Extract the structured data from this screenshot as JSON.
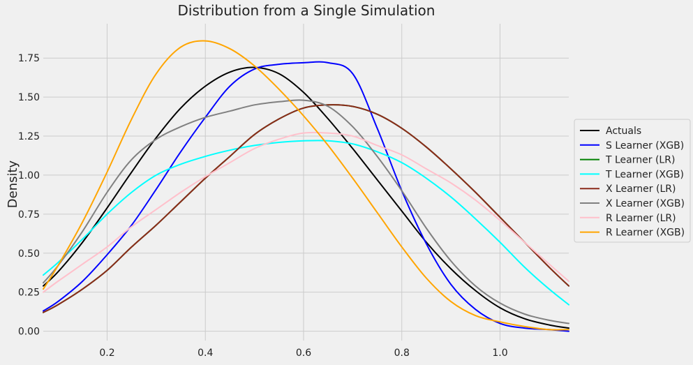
{
  "chart_data": {
    "type": "line",
    "title": "Distribution from a Single Simulation",
    "xlabel": "",
    "ylabel": "Density",
    "xlim": [
      0.07,
      1.14
    ],
    "ylim": [
      -0.06,
      1.97
    ],
    "xticks": [
      0.2,
      0.4,
      0.6,
      0.8,
      1.0
    ],
    "xtick_labels": [
      "0.2",
      "0.4",
      "0.6",
      "0.8",
      "1.0"
    ],
    "yticks": [
      0.0,
      0.25,
      0.5,
      0.75,
      1.0,
      1.25,
      1.5,
      1.75
    ],
    "ytick_labels": [
      "0.00",
      "0.25",
      "0.50",
      "0.75",
      "1.00",
      "1.25",
      "1.50",
      "1.75"
    ],
    "grid": true,
    "legend_placement": "center-right-outside",
    "series": [
      {
        "name": "Actuals",
        "color": "#000000",
        "x": [
          0.07,
          0.1,
          0.15,
          0.2,
          0.25,
          0.3,
          0.35,
          0.4,
          0.45,
          0.5,
          0.55,
          0.6,
          0.65,
          0.7,
          0.75,
          0.8,
          0.85,
          0.9,
          0.95,
          1.0,
          1.05,
          1.1,
          1.14
        ],
        "y": [
          0.29,
          0.38,
          0.57,
          0.79,
          1.02,
          1.24,
          1.43,
          1.57,
          1.66,
          1.69,
          1.65,
          1.53,
          1.36,
          1.17,
          0.97,
          0.77,
          0.57,
          0.4,
          0.26,
          0.15,
          0.08,
          0.04,
          0.02
        ]
      },
      {
        "name": "S Learner (XGB)",
        "color": "#0000ff",
        "x": [
          0.07,
          0.1,
          0.15,
          0.2,
          0.25,
          0.3,
          0.35,
          0.4,
          0.45,
          0.5,
          0.55,
          0.6,
          0.65,
          0.7,
          0.75,
          0.8,
          0.85,
          0.9,
          0.95,
          1.0,
          1.05,
          1.1,
          1.14
        ],
        "y": [
          0.13,
          0.19,
          0.32,
          0.49,
          0.68,
          0.91,
          1.15,
          1.37,
          1.57,
          1.68,
          1.71,
          1.72,
          1.72,
          1.65,
          1.3,
          0.9,
          0.56,
          0.3,
          0.14,
          0.05,
          0.02,
          0.01,
          0.0
        ]
      },
      {
        "name": "T Learner (LR)",
        "color": "#008000",
        "x": [
          0.07,
          0.1,
          0.15,
          0.2,
          0.25,
          0.3,
          0.35,
          0.4,
          0.45,
          0.5,
          0.55,
          0.6,
          0.65,
          0.7,
          0.75,
          0.8,
          0.85,
          0.9,
          0.95,
          1.0,
          1.05,
          1.1,
          1.14
        ],
        "y": [
          0.12,
          0.17,
          0.27,
          0.39,
          0.54,
          0.68,
          0.83,
          0.98,
          1.12,
          1.26,
          1.36,
          1.43,
          1.45,
          1.44,
          1.39,
          1.3,
          1.18,
          1.04,
          0.89,
          0.73,
          0.57,
          0.41,
          0.29
        ]
      },
      {
        "name": "T Learner (XGB)",
        "color": "#00ffff",
        "x": [
          0.07,
          0.1,
          0.15,
          0.2,
          0.25,
          0.3,
          0.35,
          0.4,
          0.45,
          0.5,
          0.55,
          0.6,
          0.65,
          0.7,
          0.75,
          0.8,
          0.85,
          0.9,
          0.95,
          1.0,
          1.05,
          1.1,
          1.14
        ],
        "y": [
          0.36,
          0.44,
          0.59,
          0.75,
          0.89,
          1.0,
          1.07,
          1.12,
          1.16,
          1.19,
          1.21,
          1.22,
          1.22,
          1.2,
          1.15,
          1.08,
          0.98,
          0.86,
          0.72,
          0.57,
          0.41,
          0.27,
          0.17
        ]
      },
      {
        "name": "X Learner (LR)",
        "color": "#8b2a1a",
        "x": [
          0.07,
          0.1,
          0.15,
          0.2,
          0.25,
          0.3,
          0.35,
          0.4,
          0.45,
          0.5,
          0.55,
          0.6,
          0.65,
          0.7,
          0.75,
          0.8,
          0.85,
          0.9,
          0.95,
          1.0,
          1.05,
          1.1,
          1.14
        ],
        "y": [
          0.12,
          0.17,
          0.27,
          0.39,
          0.54,
          0.68,
          0.83,
          0.98,
          1.12,
          1.26,
          1.36,
          1.43,
          1.45,
          1.44,
          1.39,
          1.3,
          1.18,
          1.04,
          0.89,
          0.73,
          0.57,
          0.41,
          0.29
        ]
      },
      {
        "name": "X Learner (XGB)",
        "color": "#808080",
        "x": [
          0.07,
          0.1,
          0.15,
          0.2,
          0.25,
          0.3,
          0.35,
          0.4,
          0.45,
          0.5,
          0.55,
          0.6,
          0.65,
          0.7,
          0.75,
          0.8,
          0.85,
          0.9,
          0.95,
          1.0,
          1.05,
          1.1,
          1.14
        ],
        "y": [
          0.31,
          0.42,
          0.64,
          0.89,
          1.1,
          1.23,
          1.31,
          1.37,
          1.41,
          1.45,
          1.47,
          1.48,
          1.44,
          1.31,
          1.12,
          0.9,
          0.66,
          0.45,
          0.29,
          0.18,
          0.11,
          0.07,
          0.05
        ]
      },
      {
        "name": "R Learner (LR)",
        "color": "#ffc0cb",
        "x": [
          0.07,
          0.1,
          0.15,
          0.2,
          0.25,
          0.3,
          0.35,
          0.4,
          0.45,
          0.5,
          0.55,
          0.6,
          0.65,
          0.7,
          0.75,
          0.8,
          0.85,
          0.9,
          0.95,
          1.0,
          1.05,
          1.1,
          1.14
        ],
        "y": [
          0.25,
          0.32,
          0.43,
          0.54,
          0.67,
          0.78,
          0.89,
          0.99,
          1.08,
          1.17,
          1.23,
          1.27,
          1.27,
          1.25,
          1.19,
          1.13,
          1.04,
          0.95,
          0.84,
          0.71,
          0.57,
          0.43,
          0.32
        ]
      },
      {
        "name": "R Learner (XGB)",
        "color": "#ffa500",
        "x": [
          0.07,
          0.1,
          0.15,
          0.2,
          0.25,
          0.3,
          0.35,
          0.4,
          0.45,
          0.5,
          0.55,
          0.6,
          0.65,
          0.7,
          0.75,
          0.8,
          0.85,
          0.9,
          0.95,
          1.0,
          1.05,
          1.1,
          1.14
        ],
        "y": [
          0.27,
          0.42,
          0.7,
          1.02,
          1.36,
          1.65,
          1.82,
          1.86,
          1.81,
          1.7,
          1.55,
          1.38,
          1.19,
          0.98,
          0.76,
          0.54,
          0.34,
          0.19,
          0.1,
          0.06,
          0.03,
          0.01,
          0.01
        ]
      }
    ]
  }
}
